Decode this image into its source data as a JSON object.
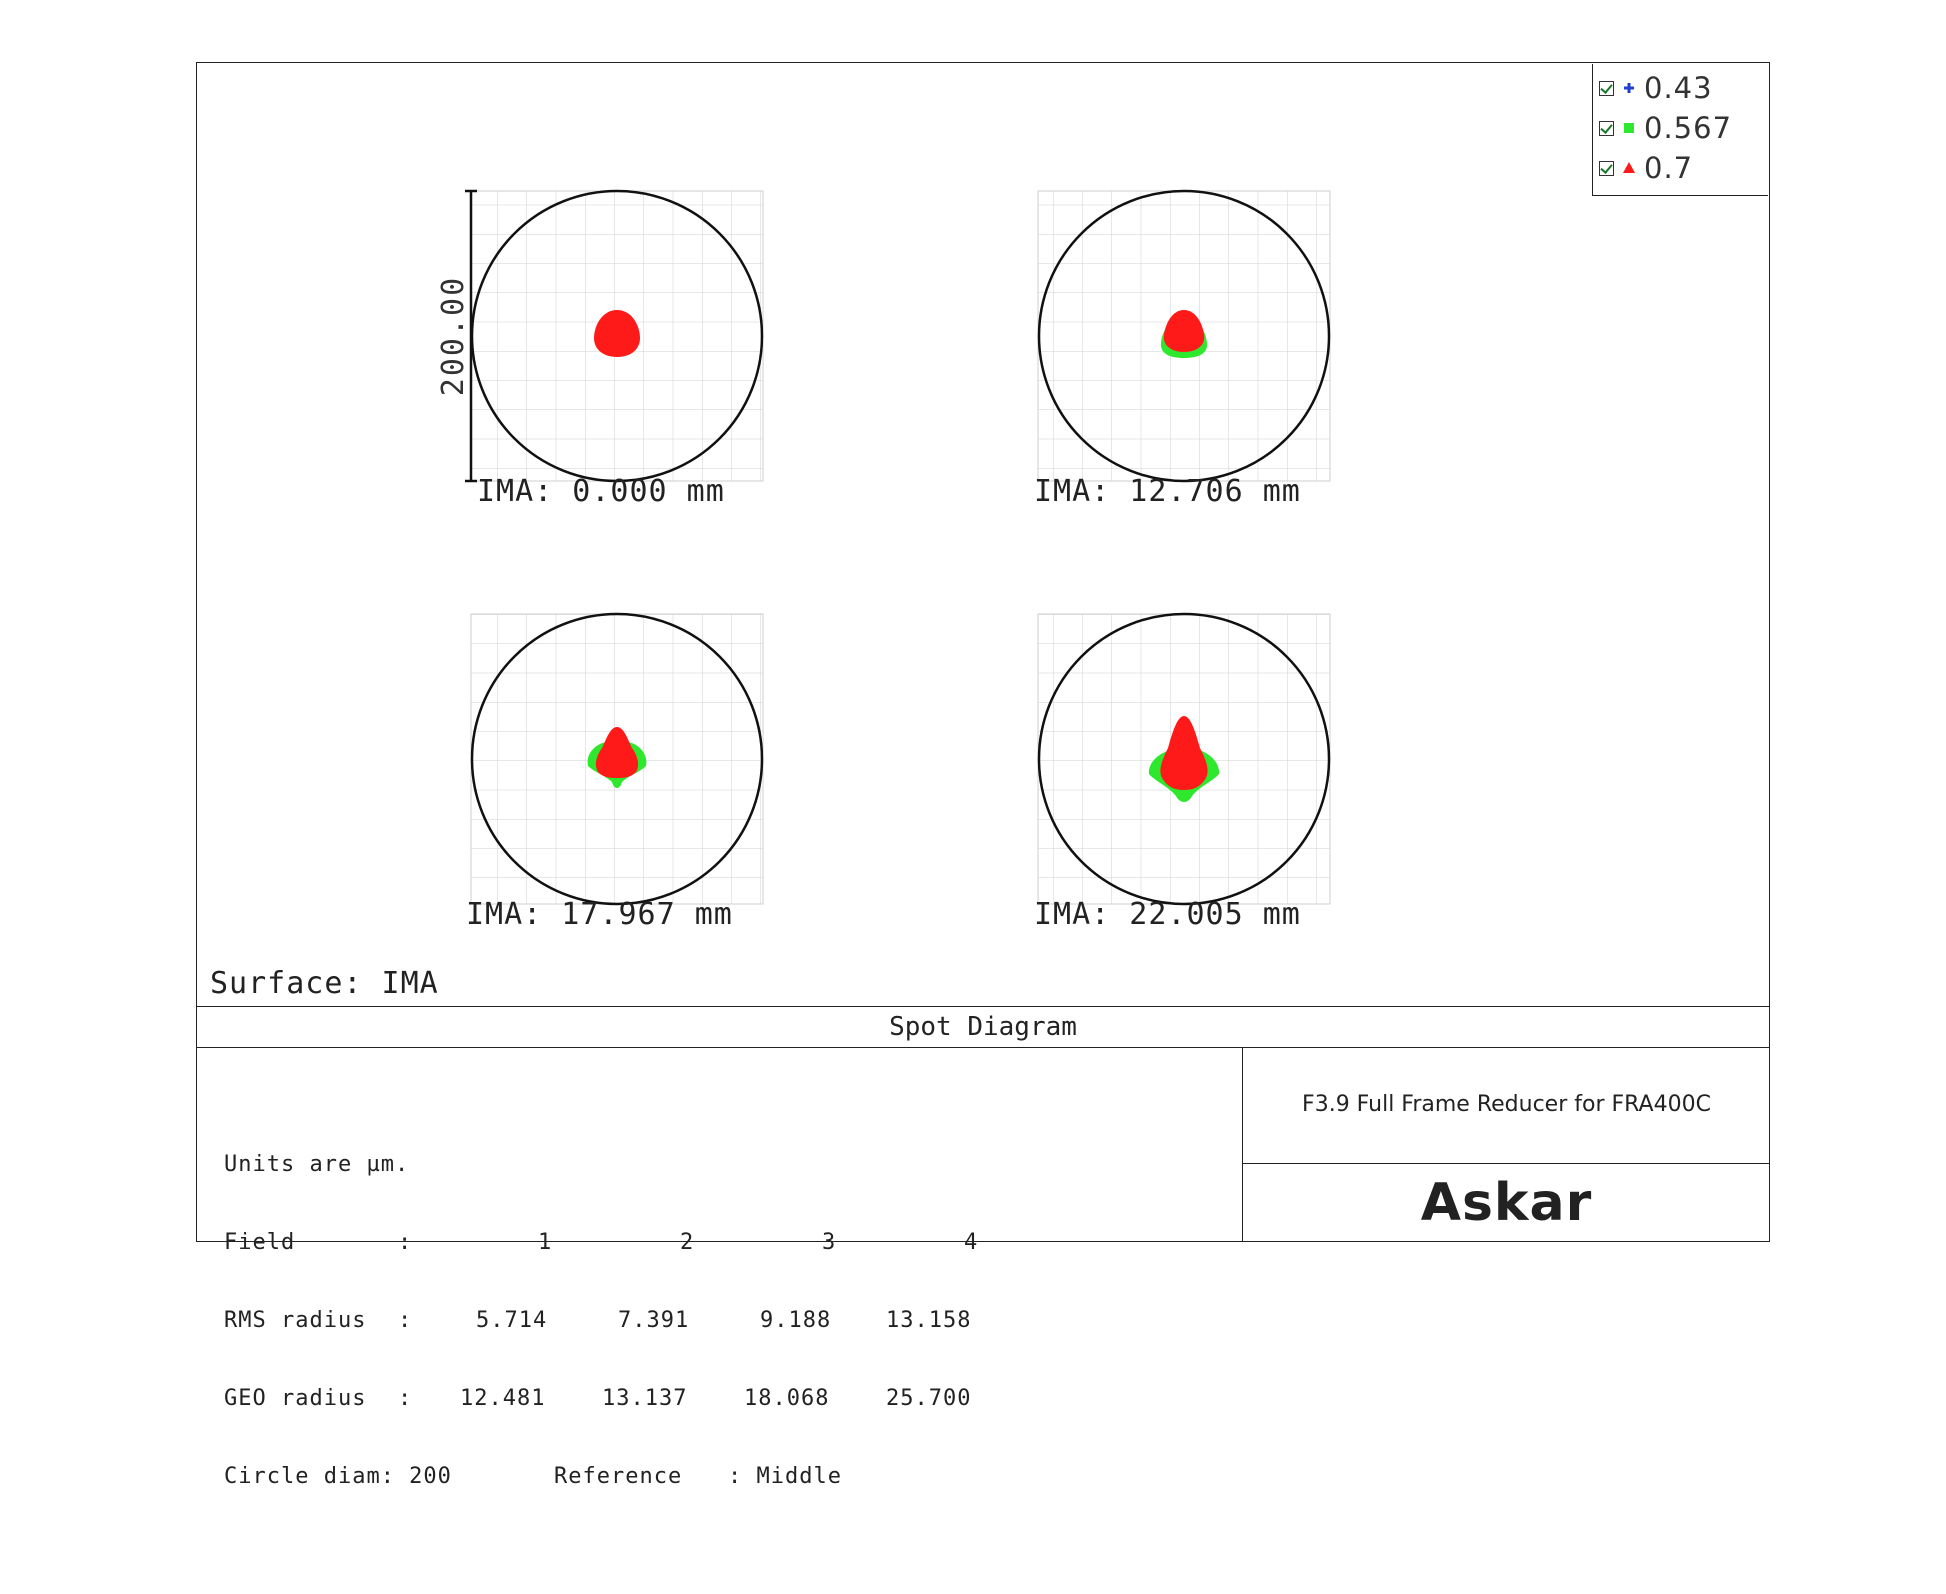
{
  "legend": [
    {
      "label": "0.43",
      "color": "#1f3fd6",
      "symbol": "cross-icon"
    },
    {
      "label": "0.567",
      "color": "#2ee82e",
      "symbol": "square-icon"
    },
    {
      "label": "0.7",
      "color": "#ff1a1a",
      "symbol": "triangle-icon"
    }
  ],
  "scale_bar_label": "200.00",
  "fields": [
    {
      "label": "IMA: 0.000 mm"
    },
    {
      "label": "IMA: 12.706 mm"
    },
    {
      "label": "IMA: 17.967 mm"
    },
    {
      "label": "IMA: 22.005 mm"
    }
  ],
  "surface_label": "Surface: IMA",
  "diagram_title": "Spot Diagram",
  "info": {
    "units": "Units are µm.",
    "field_label": "Field",
    "field_values": [
      "1",
      "2",
      "3",
      "4"
    ],
    "rms_label": "RMS radius",
    "rms_values": [
      "5.714",
      "7.391",
      "9.188",
      "13.158"
    ],
    "geo_label": "GEO radius",
    "geo_values": [
      "12.481",
      "13.137",
      "18.068",
      "25.700"
    ],
    "circle_label": "Circle diam: 200",
    "reference_label": "Reference",
    "reference_value": ": Middle",
    "colon": ":"
  },
  "description": "F3.9 Full Frame Reducer for FRA400C",
  "logo_text": "Askar"
}
